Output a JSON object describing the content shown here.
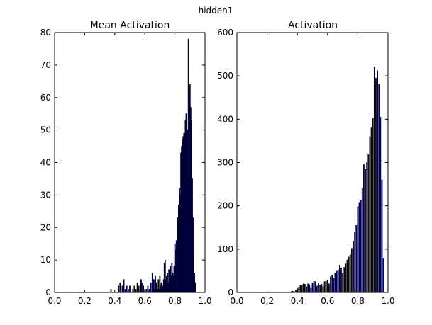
{
  "figure": {
    "suptitle": "hidden1"
  },
  "chart_data": [
    {
      "type": "bar",
      "title": "Mean Activation",
      "xlabel": "",
      "ylabel": "",
      "xlim": [
        0.0,
        1.0
      ],
      "ylim": [
        0,
        80
      ],
      "xticks": [
        "0.0",
        "0.2",
        "0.4",
        "0.6",
        "0.8",
        "1.0"
      ],
      "yticks": [
        "0",
        "10",
        "20",
        "30",
        "40",
        "50",
        "60",
        "70",
        "80"
      ],
      "bar_color": "#00008b",
      "bin_width": 0.005,
      "x": [
        0.375,
        0.425,
        0.435,
        0.45,
        0.46,
        0.47,
        0.48,
        0.49,
        0.5,
        0.52,
        0.53,
        0.54,
        0.55,
        0.56,
        0.57,
        0.575,
        0.58,
        0.59,
        0.6,
        0.61,
        0.62,
        0.63,
        0.635,
        0.64,
        0.65,
        0.655,
        0.66,
        0.665,
        0.67,
        0.675,
        0.68,
        0.685,
        0.69,
        0.695,
        0.7,
        0.705,
        0.71,
        0.715,
        0.72,
        0.725,
        0.73,
        0.735,
        0.74,
        0.745,
        0.75,
        0.755,
        0.76,
        0.765,
        0.77,
        0.775,
        0.78,
        0.785,
        0.79,
        0.795,
        0.8,
        0.805,
        0.81,
        0.815,
        0.82,
        0.825,
        0.83,
        0.835,
        0.84,
        0.845,
        0.85,
        0.855,
        0.86,
        0.865,
        0.87,
        0.875,
        0.88,
        0.885,
        0.89,
        0.895,
        0.9,
        0.905,
        0.91,
        0.915,
        0.92,
        0.925,
        0.93,
        0.935,
        0.94,
        0.945,
        0.95,
        0.955
      ],
      "values": [
        1,
        2,
        3,
        2,
        4,
        1,
        2,
        1,
        2,
        1,
        2,
        1,
        3,
        2,
        1,
        4,
        3,
        2,
        1,
        1,
        2,
        1,
        1,
        3,
        6,
        2,
        4,
        1,
        5,
        3,
        2,
        1,
        4,
        1,
        5,
        2,
        3,
        1,
        2,
        4,
        9,
        10,
        4,
        5,
        6,
        3,
        7,
        4,
        8,
        5,
        9,
        6,
        5,
        8,
        15,
        13,
        16,
        14,
        23,
        27,
        32,
        30,
        43,
        45,
        47,
        48,
        49,
        49,
        53,
        55,
        48,
        50,
        78,
        62,
        64,
        57,
        53,
        35,
        23,
        12,
        6,
        3,
        0,
        0,
        0,
        0
      ]
    },
    {
      "type": "bar",
      "title": "Activation",
      "xlabel": "",
      "ylabel": "",
      "xlim": [
        0.0,
        1.0
      ],
      "ylim": [
        0,
        600
      ],
      "xticks": [
        "0.0",
        "0.2",
        "0.4",
        "0.6",
        "0.8",
        "1.0"
      ],
      "yticks": [
        "0",
        "100",
        "200",
        "300",
        "400",
        "500",
        "600"
      ],
      "bar_color": "#00008b",
      "bin_width": 0.005,
      "x": [
        0.35,
        0.36,
        0.37,
        0.38,
        0.39,
        0.4,
        0.41,
        0.42,
        0.43,
        0.44,
        0.45,
        0.46,
        0.47,
        0.48,
        0.49,
        0.5,
        0.51,
        0.52,
        0.53,
        0.54,
        0.55,
        0.56,
        0.57,
        0.58,
        0.59,
        0.6,
        0.61,
        0.62,
        0.63,
        0.64,
        0.65,
        0.66,
        0.67,
        0.68,
        0.69,
        0.7,
        0.71,
        0.72,
        0.73,
        0.74,
        0.75,
        0.76,
        0.77,
        0.78,
        0.79,
        0.8,
        0.81,
        0.82,
        0.83,
        0.84,
        0.85,
        0.86,
        0.87,
        0.88,
        0.89,
        0.9,
        0.91,
        0.92,
        0.93,
        0.94,
        0.95,
        0.96,
        0.97
      ],
      "values": [
        1,
        2,
        3,
        2,
        6,
        9,
        12,
        17,
        16,
        20,
        19,
        13,
        20,
        18,
        10,
        22,
        26,
        25,
        15,
        22,
        17,
        19,
        14,
        25,
        26,
        28,
        20,
        36,
        40,
        33,
        45,
        49,
        52,
        63,
        57,
        45,
        58,
        66,
        75,
        82,
        87,
        102,
        118,
        140,
        155,
        198,
        208,
        212,
        240,
        295,
        284,
        300,
        318,
        360,
        380,
        402,
        520,
        495,
        512,
        480,
        405,
        260,
        78
      ]
    }
  ]
}
